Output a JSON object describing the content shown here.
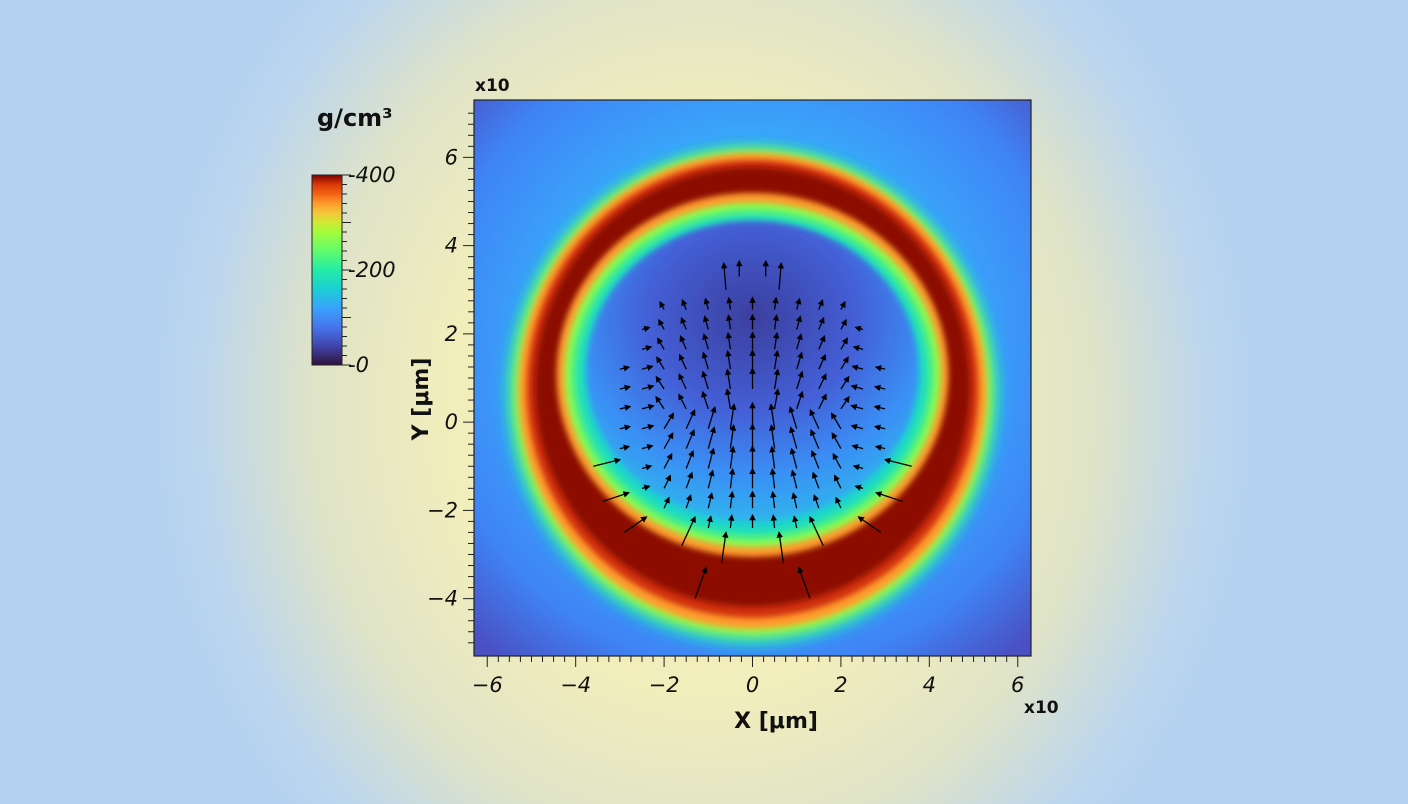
{
  "chart_data": {
    "type": "heatmap",
    "title": "",
    "xlabel": "X [μm]",
    "ylabel": "Y [μm]",
    "x_multiplier": "x10",
    "y_multiplier": "x10",
    "xlim": [
      -6.3,
      6.3
    ],
    "ylim": [
      -5.3,
      7.3
    ],
    "x_ticks": [
      -6,
      -4,
      -2,
      0,
      2,
      4,
      6
    ],
    "y_ticks": [
      -4,
      -2,
      0,
      2,
      4,
      6
    ],
    "x_tick_labels": [
      "−6",
      "−4",
      "−2",
      "0",
      "2",
      "4",
      "6"
    ],
    "y_tick_labels": [
      "−4",
      "−2",
      "0",
      "2",
      "4",
      "6"
    ],
    "colorbar": {
      "title": "g/cm³",
      "min": 0,
      "max": 400,
      "ticks": [
        0,
        200,
        400
      ],
      "tick_labels": [
        "0",
        "200",
        "400"
      ],
      "colormap": "turbo"
    },
    "field": {
      "description_of_values": "density",
      "shell_center": [
        0,
        0.8
      ],
      "shell_outer_radius": [
        5.2,
        5.0,
        4.9
      ],
      "shell_inner_radius": [
        3.8,
        3.5,
        2.9
      ],
      "shell_peak_density": 400,
      "interior_density": 60,
      "exterior_density": 90
    },
    "vectors": {
      "type": "quiver",
      "color": "#000000",
      "description": "velocity arrows converging toward a point near (0, 0.3) from the lower part of the shell and diverging upward inside the cavity",
      "arrows": [
        {
          "x": -1.3,
          "y": -4.0,
          "u": 0.25,
          "v": 0.7
        },
        {
          "x": 1.3,
          "y": -4.0,
          "u": -0.25,
          "v": 0.7
        },
        {
          "x": -1.6,
          "y": -2.8,
          "u": 0.3,
          "v": 0.65
        },
        {
          "x": 1.6,
          "y": -2.8,
          "u": -0.3,
          "v": 0.65
        },
        {
          "x": -0.7,
          "y": -3.2,
          "u": 0.1,
          "v": 0.7
        },
        {
          "x": 0.7,
          "y": -3.2,
          "u": -0.1,
          "v": 0.7
        },
        {
          "x": -3.6,
          "y": -1.0,
          "u": 0.6,
          "v": 0.15
        },
        {
          "x": 3.6,
          "y": -1.0,
          "u": -0.6,
          "v": 0.15
        },
        {
          "x": -3.4,
          "y": -1.8,
          "u": 0.6,
          "v": 0.2
        },
        {
          "x": 3.4,
          "y": -1.8,
          "u": -0.6,
          "v": 0.2
        },
        {
          "x": -2.9,
          "y": -2.5,
          "u": 0.5,
          "v": 0.35
        },
        {
          "x": 2.9,
          "y": -2.5,
          "u": -0.5,
          "v": 0.35
        },
        {
          "x": -0.6,
          "y": 3.0,
          "u": -0.05,
          "v": 0.6
        },
        {
          "x": 0.6,
          "y": 3.0,
          "u": 0.05,
          "v": 0.6
        },
        {
          "x": -0.3,
          "y": 3.3,
          "u": 0.0,
          "v": 0.35
        },
        {
          "x": 0.3,
          "y": 3.3,
          "u": 0.0,
          "v": 0.35
        }
      ]
    }
  }
}
